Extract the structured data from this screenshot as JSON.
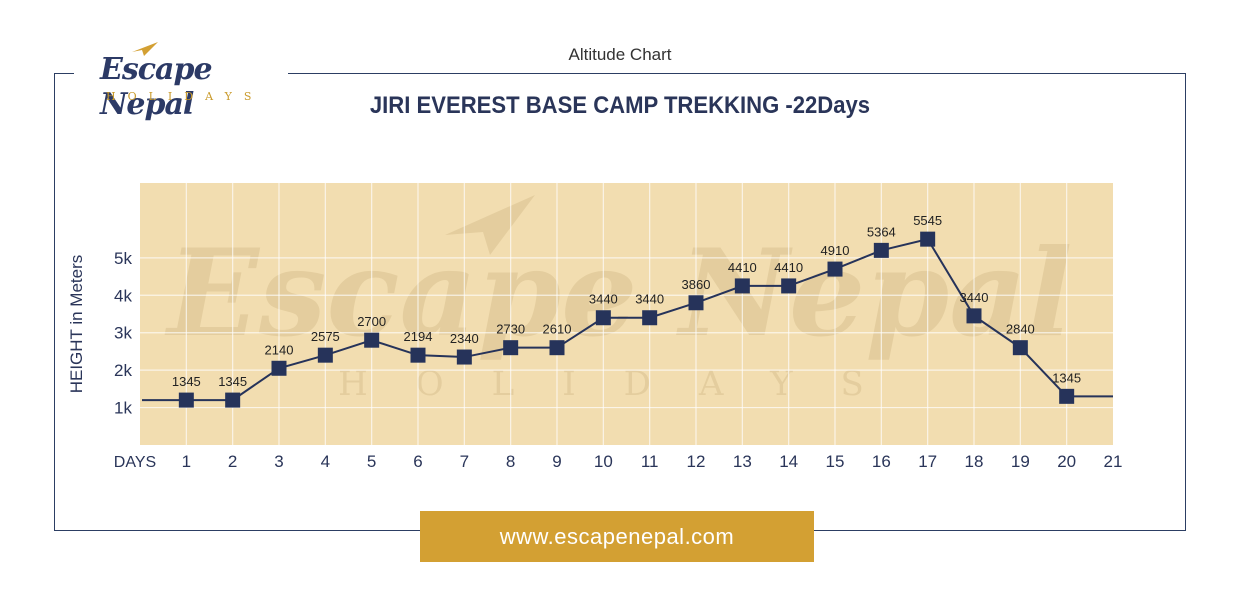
{
  "header": {
    "label": "Altitude Chart"
  },
  "logo": {
    "name": "Escape Nepal",
    "tagline": "HOLIDAYS"
  },
  "title": "JIRI EVEREST BASE CAMP TREKKING -22Days",
  "footer": {
    "url": "www.escapenepal.com"
  },
  "colors": {
    "plot_bg": "#f2ddb0",
    "line": "#26335a",
    "accent": "#d3a033",
    "text": "#2a3559"
  },
  "chart_data": {
    "type": "line",
    "title": "JIRI EVEREST BASE CAMP TREKKING -22Days",
    "xlabel": "DAYS",
    "ylabel": "HEIGHT in Meters",
    "x_ticks": [
      1,
      2,
      3,
      4,
      5,
      6,
      7,
      8,
      9,
      10,
      11,
      12,
      13,
      14,
      15,
      16,
      17,
      18,
      19,
      20,
      21
    ],
    "y_ticks": [
      {
        "value": 1000,
        "label": "1k"
      },
      {
        "value": 2000,
        "label": "2k"
      },
      {
        "value": 3000,
        "label": "3k"
      },
      {
        "value": 4000,
        "label": "4k"
      },
      {
        "value": 5000,
        "label": "5k"
      }
    ],
    "ylim": [
      0,
      7000
    ],
    "xlim": [
      0,
      21
    ],
    "grid": true,
    "series": [
      {
        "x": [
          1,
          2,
          3,
          4,
          5,
          6,
          7,
          8,
          9,
          10,
          11,
          12,
          13,
          14,
          15,
          16,
          17,
          18,
          19,
          20
        ],
        "values": [
          1345,
          1345,
          2140,
          2575,
          2700,
          2194,
          2340,
          2730,
          2610,
          3440,
          3440,
          3860,
          4410,
          4410,
          4910,
          5364,
          5545,
          3440,
          2840,
          1345
        ],
        "plot_y": [
          1200,
          1200,
          2050,
          2400,
          2800,
          2400,
          2350,
          2600,
          2600,
          3400,
          3400,
          3800,
          4250,
          4250,
          4700,
          5200,
          5500,
          3450,
          2600,
          1300
        ],
        "labels": [
          "1345",
          "1345",
          "2140",
          "2575",
          "2700",
          "2194",
          "2340",
          "2730",
          "2610",
          "3440",
          "3440",
          "3860",
          "4410",
          "4410",
          "4910",
          "5364",
          "5545",
          "3440",
          "2840",
          "1345"
        ]
      }
    ]
  }
}
